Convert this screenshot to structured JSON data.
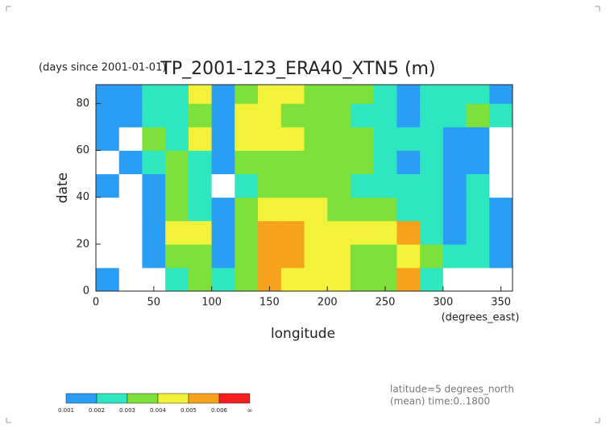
{
  "chart_data": {
    "type": "heatmap",
    "title": "TP_2001-123_ERA40_XTN5 (m)",
    "subtitle": "(days since 2001-01-01)",
    "x_label": "longitude",
    "x_unit": "(degrees_east)",
    "y_label": "date",
    "xlim": [
      0,
      360
    ],
    "ylim": [
      0,
      88
    ],
    "xticks": [
      0,
      50,
      100,
      150,
      200,
      250,
      300,
      350
    ],
    "yticks": [
      0,
      20,
      40,
      60,
      80
    ],
    "x_bins": [
      0,
      20,
      40,
      60,
      80,
      100,
      120,
      140,
      160,
      180,
      200,
      220,
      240,
      260,
      280,
      300,
      320,
      340,
      360
    ],
    "y_bins": [
      0,
      10,
      20,
      30,
      40,
      50,
      60,
      70,
      80,
      88
    ],
    "z": [
      [
        0.0012,
        0.0005,
        0.0008,
        0.0025,
        0.003,
        0.0022,
        0.003,
        0.005,
        0.0045,
        0.004,
        0.004,
        0.0035,
        0.003,
        0.0055,
        0.0025,
        0.0005,
        0.0005,
        0.0005
      ],
      [
        0.0005,
        0.0005,
        0.0015,
        0.003,
        0.0035,
        0.0015,
        0.0035,
        0.0055,
        0.005,
        0.0045,
        0.004,
        0.0035,
        0.0035,
        0.004,
        0.003,
        0.002,
        0.002,
        0.0015
      ],
      [
        0.0005,
        0.0005,
        0.0012,
        0.0045,
        0.004,
        0.0012,
        0.0035,
        0.005,
        0.0055,
        0.0045,
        0.004,
        0.004,
        0.0045,
        0.005,
        0.0025,
        0.0015,
        0.002,
        0.0015
      ],
      [
        0.0005,
        0.0008,
        0.0012,
        0.003,
        0.002,
        0.001,
        0.003,
        0.0045,
        0.0045,
        0.004,
        0.0035,
        0.003,
        0.003,
        0.0025,
        0.002,
        0.0015,
        0.002,
        0.0012
      ],
      [
        0.0012,
        0.0005,
        0.0015,
        0.003,
        0.002,
        0.0008,
        0.0025,
        0.003,
        0.0035,
        0.003,
        0.003,
        0.0025,
        0.002,
        0.002,
        0.0025,
        0.0015,
        0.002,
        0.0008
      ],
      [
        0.0005,
        0.0012,
        0.002,
        0.003,
        0.002,
        0.0012,
        0.003,
        0.0035,
        0.003,
        0.0035,
        0.003,
        0.003,
        0.0025,
        0.0015,
        0.002,
        0.0015,
        0.0015,
        0.0005
      ],
      [
        0.0015,
        0.0008,
        0.0035,
        0.0025,
        0.004,
        0.0015,
        0.0045,
        0.0045,
        0.004,
        0.0035,
        0.0035,
        0.003,
        0.002,
        0.002,
        0.0025,
        0.0015,
        0.0012,
        0.0008
      ],
      [
        0.0015,
        0.0012,
        0.0025,
        0.002,
        0.0035,
        0.0015,
        0.004,
        0.0045,
        0.0035,
        0.0035,
        0.003,
        0.0025,
        0.002,
        0.0015,
        0.002,
        0.0025,
        0.0035,
        0.0025
      ],
      [
        0.0015,
        0.0012,
        0.002,
        0.002,
        0.0045,
        0.0015,
        0.0035,
        0.0045,
        0.004,
        0.003,
        0.0035,
        0.0035,
        0.002,
        0.0015,
        0.002,
        0.002,
        0.002,
        0.0015
      ]
    ],
    "levels": [
      0.001,
      0.002,
      0.003,
      0.004,
      0.005,
      0.006
    ],
    "top_label": "∞",
    "colors": [
      "#2a9df4",
      "#2ee6c0",
      "#7ee03a",
      "#f2f23a",
      "#f7a21c",
      "#f51e1e"
    ],
    "footnotes": [
      "latitude=5 degrees_north",
      "(mean) time:0..1800"
    ]
  }
}
